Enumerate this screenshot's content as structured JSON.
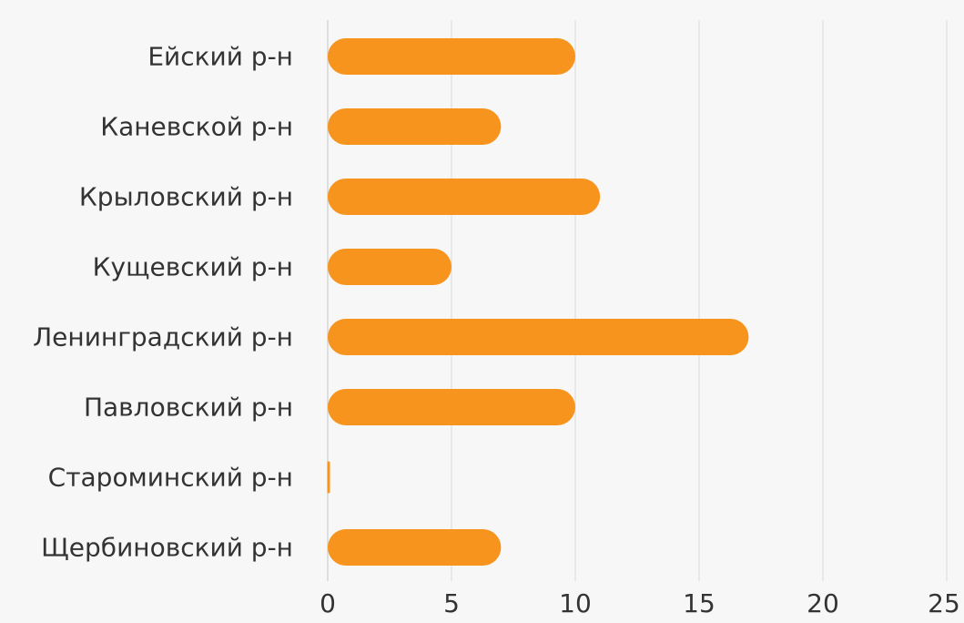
{
  "chart_data": {
    "type": "bar",
    "orientation": "horizontal",
    "categories": [
      "Ейский р-н",
      "Каневской р-н",
      "Крыловский р-н",
      "Кущевский р-н",
      "Ленинградский р-н",
      "Павловский р-н",
      "Староминский р-н",
      "Щербиновский р-н"
    ],
    "values": [
      10,
      7,
      11,
      5,
      17,
      10,
      0,
      7
    ],
    "xlim": [
      0,
      25
    ],
    "xticks": [
      0,
      5,
      10,
      15,
      20,
      25
    ],
    "xtick_labels": [
      "0",
      "5",
      "10",
      "15",
      "20",
      "25"
    ],
    "title": "",
    "xlabel": "",
    "ylabel": "",
    "grid": true,
    "bar_color": "#f7941d"
  }
}
